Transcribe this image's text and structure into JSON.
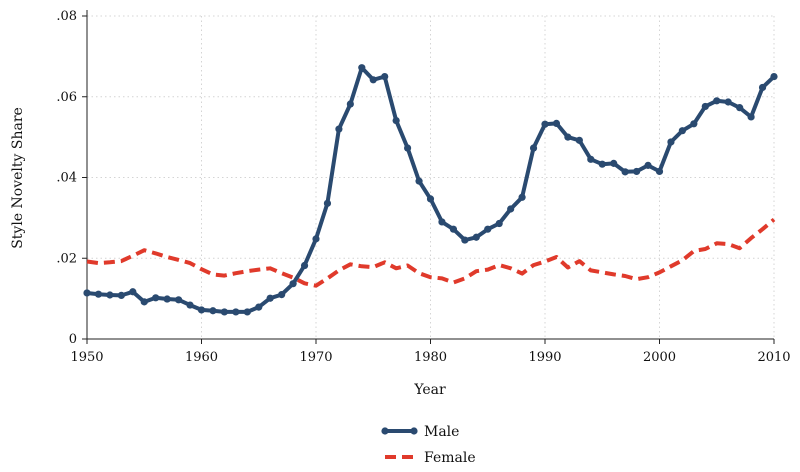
{
  "chart_data": {
    "type": "line",
    "title": "",
    "xlabel": "Year",
    "ylabel": "Style Novelty Share",
    "xlim": [
      1950,
      2010
    ],
    "ylim": [
      0,
      0.08
    ],
    "x_ticks": [
      1950,
      1960,
      1970,
      1980,
      1990,
      2000,
      2010
    ],
    "x_tick_labels": [
      "1950",
      "1960",
      "1970",
      "1980",
      "1990",
      "2000",
      "2010"
    ],
    "y_ticks": [
      0,
      0.02,
      0.04,
      0.06,
      0.08
    ],
    "y_tick_labels": [
      "0",
      ".02",
      ".04",
      ".06",
      ".08"
    ],
    "grid": true,
    "legend_position": "bottom-center",
    "x": [
      1950,
      1951,
      1952,
      1953,
      1954,
      1955,
      1956,
      1957,
      1958,
      1959,
      1960,
      1961,
      1962,
      1963,
      1964,
      1965,
      1966,
      1967,
      1968,
      1969,
      1970,
      1971,
      1972,
      1973,
      1974,
      1975,
      1976,
      1977,
      1978,
      1979,
      1980,
      1981,
      1982,
      1983,
      1984,
      1985,
      1986,
      1987,
      1988,
      1989,
      1990,
      1991,
      1992,
      1993,
      1994,
      1995,
      1996,
      1997,
      1998,
      1999,
      2000,
      2001,
      2002,
      2003,
      2004,
      2005,
      2006,
      2007,
      2008,
      2009,
      2010
    ],
    "series": [
      {
        "name": "Male",
        "color": "#2a4a70",
        "style": "solid-markers",
        "values": [
          0.0114,
          0.0111,
          0.0109,
          0.0108,
          0.0117,
          0.0092,
          0.0102,
          0.0099,
          0.0097,
          0.0084,
          0.0072,
          0.007,
          0.0067,
          0.0067,
          0.0067,
          0.0079,
          0.0101,
          0.011,
          0.0137,
          0.0182,
          0.0248,
          0.0336,
          0.052,
          0.0582,
          0.0672,
          0.0642,
          0.065,
          0.0541,
          0.0473,
          0.0391,
          0.0347,
          0.029,
          0.0272,
          0.0245,
          0.0252,
          0.0272,
          0.0286,
          0.0322,
          0.0351,
          0.0473,
          0.0532,
          0.0534,
          0.05,
          0.0492,
          0.0445,
          0.0433,
          0.0435,
          0.0414,
          0.0415,
          0.043,
          0.0415,
          0.0488,
          0.0516,
          0.0533,
          0.0576,
          0.059,
          0.0587,
          0.0573,
          0.055,
          0.0623,
          0.065
        ]
      },
      {
        "name": "Female",
        "color": "#e03a2b",
        "style": "dashed",
        "values": [
          0.0192,
          0.0188,
          0.019,
          0.0193,
          0.0206,
          0.022,
          0.0212,
          0.0203,
          0.0196,
          0.0188,
          0.0173,
          0.016,
          0.0157,
          0.0163,
          0.0168,
          0.0172,
          0.0175,
          0.0163,
          0.0152,
          0.0138,
          0.0132,
          0.015,
          0.017,
          0.0185,
          0.018,
          0.0178,
          0.019,
          0.0175,
          0.0182,
          0.0163,
          0.0153,
          0.015,
          0.014,
          0.015,
          0.0168,
          0.0172,
          0.0183,
          0.0175,
          0.0162,
          0.0183,
          0.0192,
          0.0203,
          0.0177,
          0.0193,
          0.017,
          0.0165,
          0.016,
          0.0156,
          0.0148,
          0.0153,
          0.0165,
          0.018,
          0.0195,
          0.0218,
          0.0223,
          0.0237,
          0.0235,
          0.0225,
          0.025,
          0.0272,
          0.0296
        ]
      }
    ]
  }
}
